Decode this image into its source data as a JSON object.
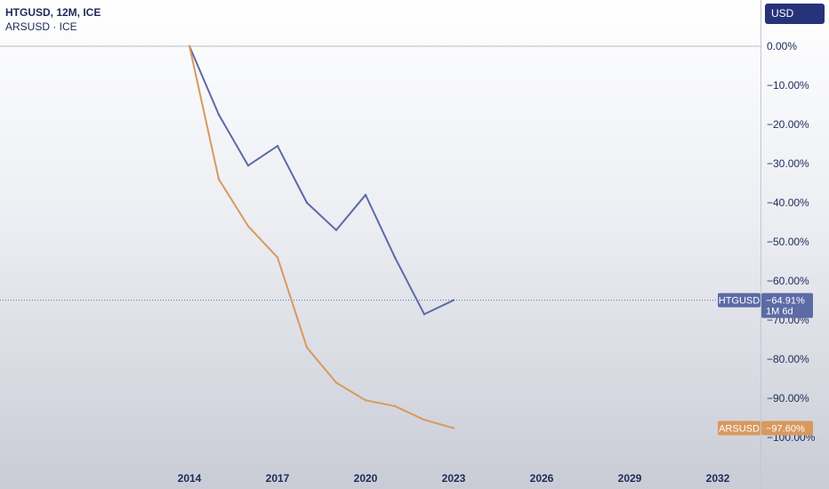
{
  "legend": {
    "title": "HTGUSD, 12M, ICE",
    "subtitle": "ARSUSD · ICE"
  },
  "currency_button": "USD",
  "colors": {
    "htgusd": "#5c6aa6",
    "arsusd": "#d8995e",
    "axis_text": "#1d2a57"
  },
  "chart_data": {
    "type": "line",
    "ylim": [
      0,
      -100
    ],
    "y_ticks": [
      0,
      -10,
      -20,
      -30,
      -40,
      -50,
      -60,
      -70,
      -80,
      -90,
      -100
    ],
    "y_tick_labels": [
      "0.00%",
      "−10.00%",
      "−20.00%",
      "−30.00%",
      "−40.00%",
      "−50.00%",
      "−60.00%",
      "−70.00%",
      "−80.00%",
      "−90.00%",
      "−100.00%"
    ],
    "x_ticks": [
      2014,
      2017,
      2020,
      2023,
      2026,
      2029,
      2032
    ],
    "x_tick_labels": [
      "2014",
      "2017",
      "2020",
      "2023",
      "2026",
      "2029",
      "2032"
    ],
    "series": [
      {
        "name": "HTGUSD",
        "x": [
          2014,
          2015,
          2016,
          2017,
          2018,
          2019,
          2020,
          2021,
          2022,
          2023
        ],
        "y": [
          0,
          -17.5,
          -30.5,
          -25.5,
          -40,
          -47,
          -38,
          -54,
          -68.5,
          -64.91
        ],
        "last_label": "HTGUSD",
        "last_value_label": "−64.91%",
        "countdown": "1M 6d"
      },
      {
        "name": "ARSUSD",
        "x": [
          2014,
          2015,
          2016,
          2017,
          2018,
          2019,
          2020,
          2021,
          2022,
          2023
        ],
        "y": [
          0,
          -34,
          -46,
          -54,
          -77,
          -86,
          -90.5,
          -92,
          -95.5,
          -97.6
        ],
        "last_label": "ARSUSD",
        "last_value_label": "−97.60%"
      }
    ]
  }
}
